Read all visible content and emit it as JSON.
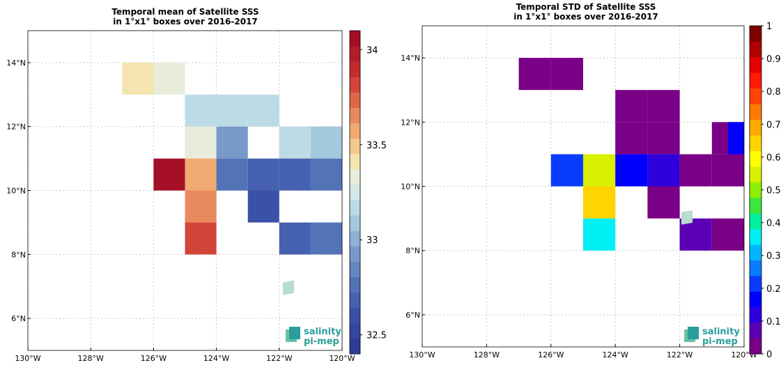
{
  "chart_data": [
    {
      "type": "heatmap",
      "title": [
        "Temporal mean of Satellite SSS",
        "in 1°x1° boxes over 2016-2017"
      ],
      "xlabel": "",
      "ylabel": "",
      "xlim": [
        -130,
        -120
      ],
      "ylim": [
        5,
        15
      ],
      "xticks": [
        -130,
        -128,
        -126,
        -124,
        -122,
        -120
      ],
      "xticklabels": [
        "130°W",
        "128°W",
        "126°W",
        "124°W",
        "122°W",
        "120°W"
      ],
      "yticks": [
        6,
        8,
        10,
        12,
        14
      ],
      "yticklabels": [
        "6°N",
        "8°N",
        "10°N",
        "12°N",
        "14°N"
      ],
      "grid": true,
      "cells": [
        {
          "lon": -127,
          "lat": 13,
          "value": 33.45
        },
        {
          "lon": -126,
          "lat": 13,
          "value": 33.32
        },
        {
          "lon": -125,
          "lat": 12,
          "value": 33.2
        },
        {
          "lon": -124,
          "lat": 12,
          "value": 33.2
        },
        {
          "lon": -123,
          "lat": 12,
          "value": 33.2
        },
        {
          "lon": -125,
          "lat": 11,
          "value": 33.32
        },
        {
          "lon": -124,
          "lat": 11,
          "value": 32.95
        },
        {
          "lon": -122,
          "lat": 11,
          "value": 33.2
        },
        {
          "lon": -121,
          "lat": 11,
          "value": 33.1
        },
        {
          "lon": -126,
          "lat": 10,
          "value": 34.05
        },
        {
          "lon": -125,
          "lat": 10,
          "value": 33.55
        },
        {
          "lon": -124,
          "lat": 10,
          "value": 32.8
        },
        {
          "lon": -123,
          "lat": 10,
          "value": 32.7
        },
        {
          "lon": -122,
          "lat": 10,
          "value": 32.7
        },
        {
          "lon": -121,
          "lat": 10,
          "value": 32.8
        },
        {
          "lon": -125,
          "lat": 9,
          "value": 33.65
        },
        {
          "lon": -123,
          "lat": 9,
          "value": 32.6
        },
        {
          "lon": -125,
          "lat": 8,
          "value": 33.85
        },
        {
          "lon": -122,
          "lat": 8,
          "value": 32.7
        },
        {
          "lon": -121,
          "lat": 8,
          "value": 32.8
        }
      ],
      "colorbar": {
        "min": 32.4,
        "max": 34.1,
        "ticks": [
          32.5,
          33,
          33.5,
          34
        ],
        "ticklabels": [
          "32.5",
          "33",
          "33.5",
          "34"
        ],
        "colors": [
          "#2f3d97",
          "#3446a0",
          "#3b51a8",
          "#4561af",
          "#5373b7",
          "#6487c0",
          "#7899c9",
          "#8eb2d4",
          "#a4c9de",
          "#bcdbe5",
          "#d3e7e7",
          "#e8ecda",
          "#f4e5b0",
          "#f5c98a",
          "#f0aa72",
          "#e98a5e",
          "#de6749",
          "#d3443b",
          "#c52b2d",
          "#b41c2a",
          "#a50f26"
        ]
      },
      "logo": {
        "line1": "salinity",
        "line2": "pi-mep"
      }
    },
    {
      "type": "heatmap",
      "title": [
        "Temporal STD of Satellite SSS",
        "in 1°x1° boxes over 2016-2017"
      ],
      "xlabel": "",
      "ylabel": "",
      "xlim": [
        -130,
        -120
      ],
      "ylim": [
        5,
        15
      ],
      "xticks": [
        -130,
        -128,
        -126,
        -124,
        -122,
        -120
      ],
      "xticklabels": [
        "130°W",
        "128°W",
        "126°W",
        "124°W",
        "122°W",
        "120°W"
      ],
      "yticks": [
        6,
        8,
        10,
        12,
        14
      ],
      "yticklabels": [
        "6°N",
        "8°N",
        "10°N",
        "12°N",
        "14°N"
      ],
      "grid": true,
      "cells": [
        {
          "lon": -127,
          "lat": 13,
          "value": 0.03
        },
        {
          "lon": -126,
          "lat": 13,
          "value": 0.03
        },
        {
          "lon": -124,
          "lat": 12,
          "value": 0.03
        },
        {
          "lon": -123,
          "lat": 12,
          "value": 0.03
        },
        {
          "lon": -124,
          "lat": 11,
          "value": 0.03
        },
        {
          "lon": -123,
          "lat": 11,
          "value": 0.03
        },
        {
          "lon": -121,
          "lat": 11,
          "value": 0.03
        },
        {
          "lon": -120.5,
          "lat": 11,
          "value": 0.18
        },
        {
          "lon": -126,
          "lat": 10,
          "value": 0.23
        },
        {
          "lon": -125,
          "lat": 10,
          "value": 0.53
        },
        {
          "lon": -124,
          "lat": 10,
          "value": 0.18
        },
        {
          "lon": -123,
          "lat": 10,
          "value": 0.13
        },
        {
          "lon": -122,
          "lat": 10,
          "value": 0.03
        },
        {
          "lon": -121,
          "lat": 10,
          "value": 0.03
        },
        {
          "lon": -125,
          "lat": 9,
          "value": 0.63
        },
        {
          "lon": -123,
          "lat": 9,
          "value": 0.03
        },
        {
          "lon": -125,
          "lat": 8,
          "value": 0.38
        },
        {
          "lon": -122,
          "lat": 8,
          "value": 0.08
        },
        {
          "lon": -121,
          "lat": 8,
          "value": 0.03
        }
      ],
      "colorbar": {
        "min": 0,
        "max": 1,
        "ticks": [
          0,
          0.1,
          0.2,
          0.3,
          0.4,
          0.5,
          0.6,
          0.7,
          0.8,
          0.9,
          1
        ],
        "ticklabels": [
          "0",
          "0.1",
          "0.2",
          "0.3",
          "0.4",
          "0.5",
          "0.6",
          "0.7",
          "0.8",
          "0.9",
          "1"
        ],
        "colors": [
          "#7a0087",
          "#5c00b5",
          "#2d00dd",
          "#0000ff",
          "#0a3cff",
          "#0a7cff",
          "#00b7ff",
          "#00f0f5",
          "#00f0a0",
          "#3ce63c",
          "#8cf000",
          "#d9f000",
          "#ffff00",
          "#ffd400",
          "#ffaa00",
          "#ff7a00",
          "#ff4500",
          "#ff1a00",
          "#e60000",
          "#b30000",
          "#800000"
        ]
      },
      "logo": {
        "line1": "salinity",
        "line2": "pi-mep"
      }
    }
  ]
}
